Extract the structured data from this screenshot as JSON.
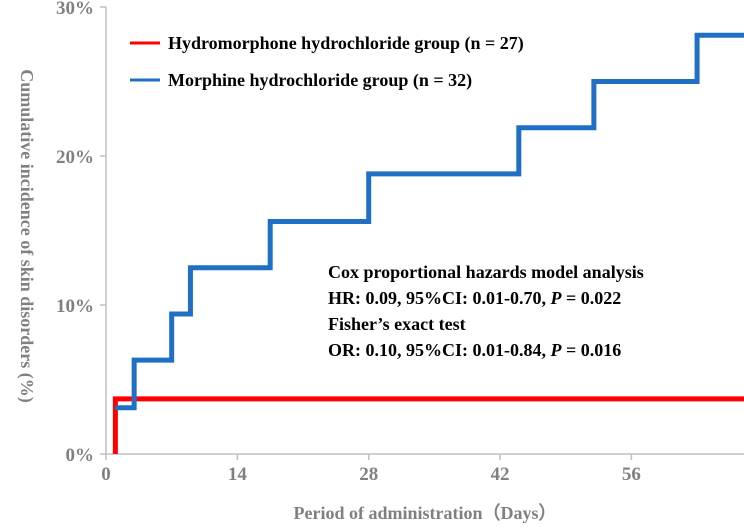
{
  "chart_data": {
    "type": "line",
    "step": true,
    "title": "",
    "xlabel": "Period of administration（Days）",
    "ylabel": "Cumulative incidence of skin disorders (%)",
    "xlim": [
      0,
      68
    ],
    "ylim": [
      0,
      30
    ],
    "x_ticks": [
      0,
      14,
      28,
      42,
      56
    ],
    "x_tick_labels": [
      "0",
      "14",
      "28",
      "42",
      "56"
    ],
    "y_ticks": [
      0,
      10,
      20,
      30
    ],
    "y_tick_labels": [
      "0%",
      "10%",
      "20%",
      "30%"
    ],
    "grid": false,
    "legend_position": "top-left",
    "series": [
      {
        "name": "Hydromorphone hydrochloride group (n = 27)",
        "color": "#ff0000",
        "x": [
          1,
          1,
          68
        ],
        "y": [
          0,
          3.7,
          3.7
        ]
      },
      {
        "name": "Morphine hydrochloride group (n = 32)",
        "color": "#1f6fc5",
        "x": [
          1,
          3,
          7,
          9,
          17.5,
          28,
          44,
          52,
          63,
          68
        ],
        "y": [
          3.1,
          6.3,
          9.4,
          12.5,
          15.6,
          18.8,
          21.9,
          25.0,
          28.1,
          28.1
        ]
      }
    ],
    "annotations": [
      {
        "text": "Cox proportional hazards model analysis"
      },
      {
        "text_before": "HR: 0.09, 95%CI: 0.01-0.70, ",
        "italic": "P",
        "text_after": " = 0.022"
      },
      {
        "text": "Fisher’s exact test"
      },
      {
        "text_before": "OR: 0.10, 95%CI: 0.01-0.84, ",
        "italic": "P",
        "text_after": " = 0.016"
      }
    ]
  }
}
